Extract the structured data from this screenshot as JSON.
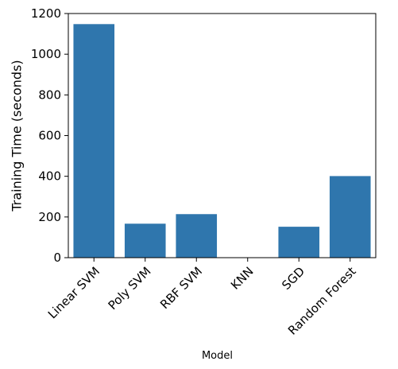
{
  "chart_data": {
    "type": "bar",
    "title": "",
    "xlabel": "Model",
    "ylabel": "Training Time (seconds)",
    "categories": [
      "Linear SVM",
      "Poly SVM",
      "RBF SVM",
      "KNN",
      "SGD",
      "Random Forest"
    ],
    "values": [
      1148,
      167,
      214,
      0.5,
      152,
      401
    ],
    "ylim": [
      0,
      1200
    ],
    "yticks": [
      0,
      200,
      400,
      600,
      800,
      1000,
      1200
    ],
    "bar_color": "#2f76ad",
    "grid": false,
    "legend": "none"
  }
}
